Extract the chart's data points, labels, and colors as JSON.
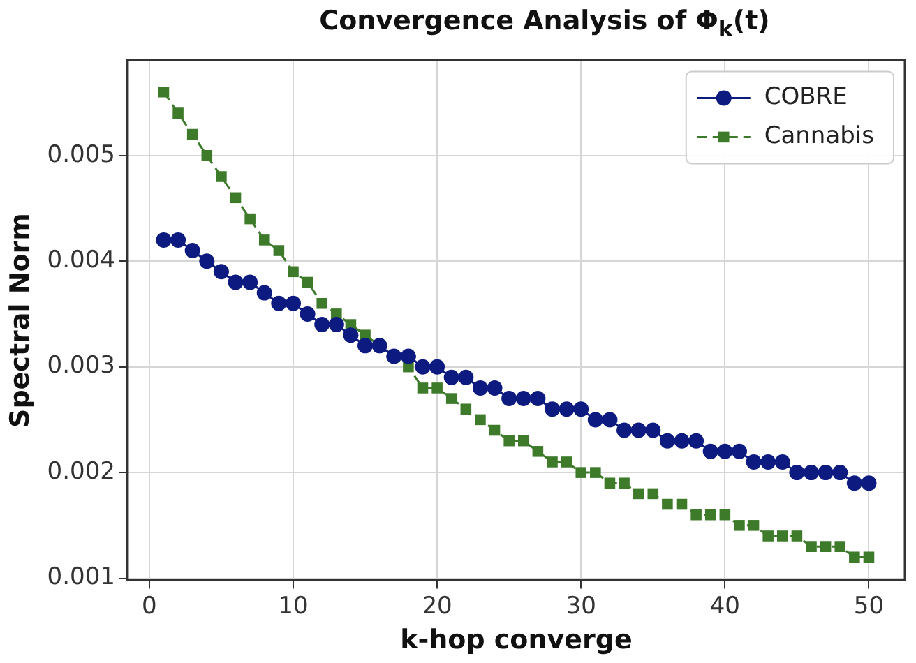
{
  "chart_data": {
    "type": "line",
    "title": "Convergence Analysis of Φ$_{k}$(t)",
    "xlabel": "k-hop converge",
    "ylabel": "Spectral Norm",
    "x": [
      1,
      2,
      3,
      4,
      5,
      6,
      7,
      8,
      9,
      10,
      11,
      12,
      13,
      14,
      15,
      16,
      17,
      18,
      19,
      20,
      21,
      22,
      23,
      24,
      25,
      26,
      27,
      28,
      29,
      30,
      31,
      32,
      33,
      34,
      35,
      36,
      37,
      38,
      39,
      40,
      41,
      42,
      43,
      44,
      45,
      46,
      47,
      48,
      49,
      50
    ],
    "series": [
      {
        "name": "COBRE",
        "color": "#0d1a80",
        "marker": "circle",
        "line_style": "solid",
        "values": [
          0.0042,
          0.0042,
          0.0041,
          0.004,
          0.0039,
          0.0038,
          0.0038,
          0.0037,
          0.0036,
          0.0036,
          0.0035,
          0.0034,
          0.0034,
          0.0033,
          0.0032,
          0.0032,
          0.0031,
          0.0031,
          0.003,
          0.003,
          0.0029,
          0.0029,
          0.0028,
          0.0028,
          0.0027,
          0.0027,
          0.0027,
          0.0026,
          0.0026,
          0.0026,
          0.0025,
          0.0025,
          0.0024,
          0.0024,
          0.0024,
          0.0023,
          0.0023,
          0.0023,
          0.0022,
          0.0022,
          0.0022,
          0.0021,
          0.0021,
          0.0021,
          0.002,
          0.002,
          0.002,
          0.002,
          0.0019,
          0.0019
        ]
      },
      {
        "name": "Cannabis",
        "color": "#3d7a2a",
        "marker": "square",
        "line_style": "dashed",
        "values": [
          0.0056,
          0.0054,
          0.0052,
          0.005,
          0.0048,
          0.0046,
          0.0044,
          0.0042,
          0.0041,
          0.0039,
          0.0038,
          0.0036,
          0.0035,
          0.0034,
          0.0033,
          0.0032,
          0.0031,
          0.003,
          0.0028,
          0.0028,
          0.0027,
          0.0026,
          0.0025,
          0.0024,
          0.0023,
          0.0023,
          0.0022,
          0.0021,
          0.0021,
          0.002,
          0.002,
          0.0019,
          0.0019,
          0.0018,
          0.0018,
          0.0017,
          0.0017,
          0.0016,
          0.0016,
          0.0016,
          0.0015,
          0.0015,
          0.0014,
          0.0014,
          0.0014,
          0.0013,
          0.0013,
          0.0013,
          0.0012,
          0.0012
        ]
      }
    ],
    "xlim": [
      -1.5,
      52.5
    ],
    "xticks": [
      0,
      10,
      20,
      30,
      40,
      50
    ],
    "ylim": [
      0.00098,
      0.0059
    ],
    "yticks": [
      0.001,
      0.002,
      0.003,
      0.004,
      0.005
    ],
    "grid": true,
    "legend": "top right"
  }
}
